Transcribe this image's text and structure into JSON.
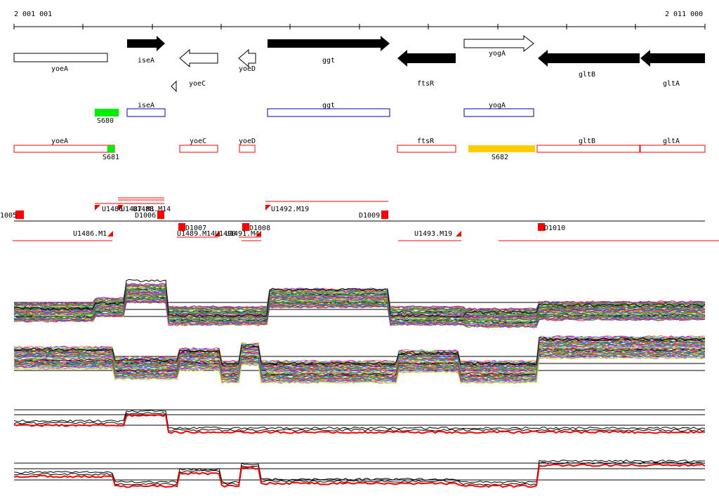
{
  "coords": {
    "start": "2 001 001",
    "end": "2 011 000"
  },
  "genes_top": [
    {
      "name": "yoeA",
      "style": "open",
      "dir": "none"
    },
    {
      "name": "iseA",
      "style": "filled",
      "dir": "right"
    },
    {
      "name": "",
      "style": "open",
      "dir": "left"
    },
    {
      "name": "yoeD",
      "style": "open",
      "dir": "left"
    },
    {
      "name": "ggt",
      "style": "filled",
      "dir": "right"
    },
    {
      "name": "ftsR",
      "style": "filled",
      "dir": "left"
    },
    {
      "name": "yogA",
      "style": "open",
      "dir": "right"
    },
    {
      "name": "gltB",
      "style": "filled",
      "dir": "left"
    },
    {
      "name": "gltA",
      "style": "filled",
      "dir": "left"
    },
    {
      "name": "yoeC",
      "style": "open",
      "dir": "left"
    }
  ],
  "blue_boxes": [
    "iseA",
    "ggt",
    "yogA"
  ],
  "green_markers": [
    "S680",
    "S681"
  ],
  "yellow_marker": "S682",
  "red_boxes": [
    "yoeA",
    "yoeC",
    "yoeD",
    "ftsR",
    "gltB",
    "gltA"
  ],
  "transcripts_above": [
    "1005",
    "U1486",
    "U1487.M1",
    "U1488.M14",
    "D1006",
    "U1492.M19",
    "D1009"
  ],
  "transcripts_below": [
    "U1486.M1",
    "D1007",
    "U1489.M14",
    "U1490",
    "U1491.M4",
    "D1008",
    "U1493.M19",
    "D1010"
  ],
  "colors": {
    "red": "#ff0000",
    "green": "#00ee00",
    "yellow": "#ffcc00",
    "blue": "#0000aa"
  }
}
